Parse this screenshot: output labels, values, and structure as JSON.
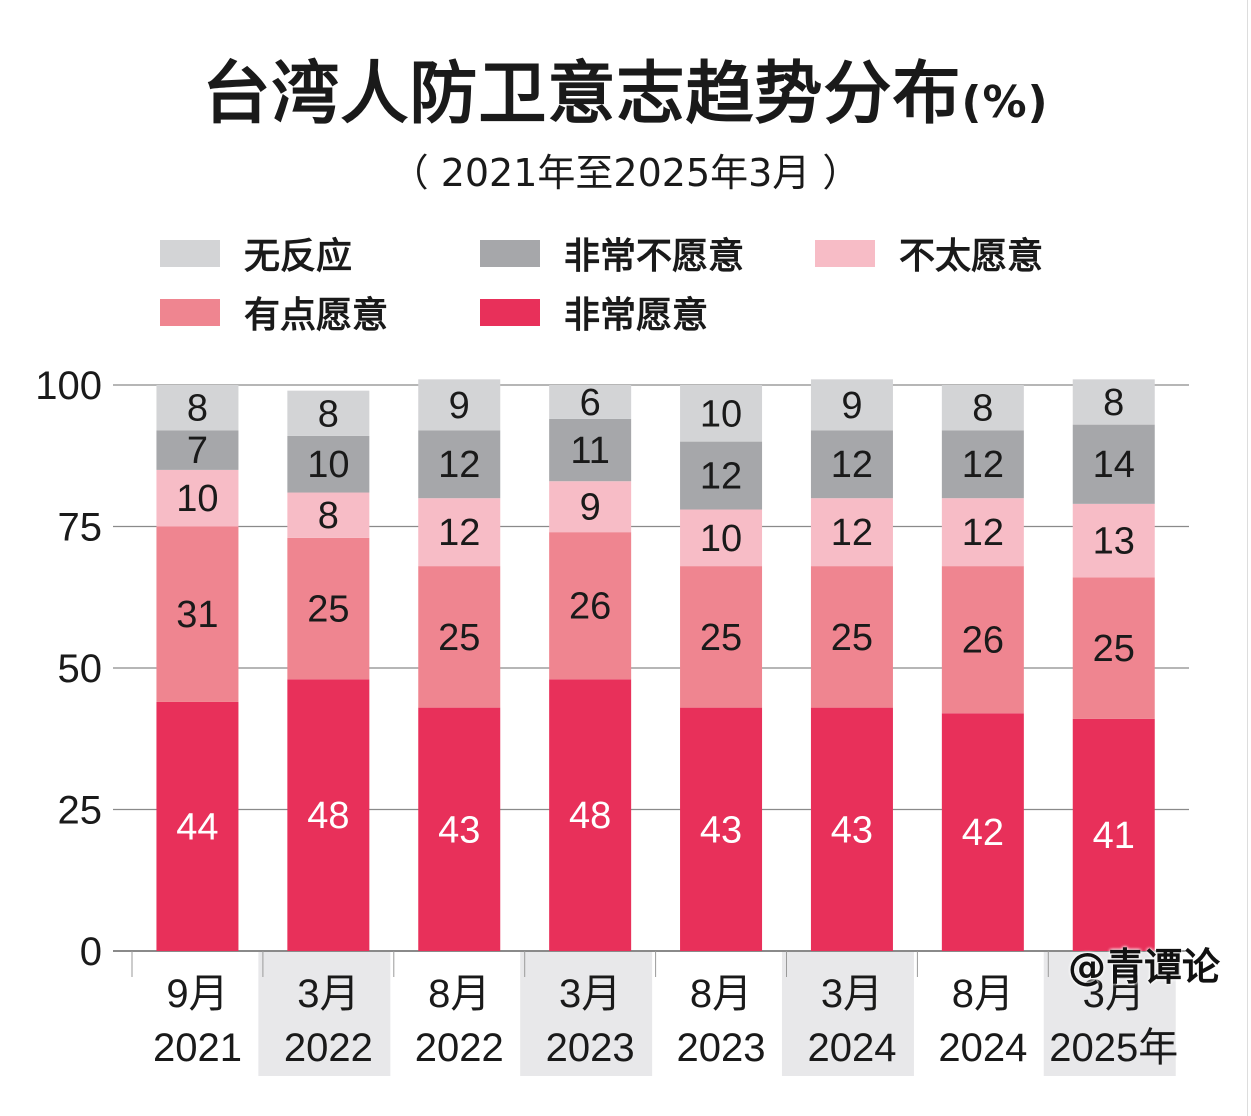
{
  "title": "台湾人防卫意志趋势分布",
  "title_unit": "(%)",
  "subtitle": "（ 2021年至2025年3月 ）",
  "watermark": "@青谭论",
  "legend": [
    {
      "label": "无反应",
      "color": "#d3d4d6"
    },
    {
      "label": "非常不愿意",
      "color": "#a6a7aa"
    },
    {
      "label": "不太愿意",
      "color": "#f7bcc6"
    },
    {
      "label": "有点愿意",
      "color": "#ef8590"
    },
    {
      "label": "非常愿意",
      "color": "#e8305a"
    }
  ],
  "chart_data": {
    "type": "bar",
    "stacked": true,
    "categories": [
      {
        "month": "9月",
        "year": "2021"
      },
      {
        "month": "3月",
        "year": "2022"
      },
      {
        "month": "8月",
        "year": "2022"
      },
      {
        "month": "3月",
        "year": "2023"
      },
      {
        "month": "8月",
        "year": "2023"
      },
      {
        "month": "3月",
        "year": "2024"
      },
      {
        "month": "8月",
        "year": "2024"
      },
      {
        "month": "3月",
        "year": "2025年"
      }
    ],
    "series": [
      {
        "name": "非常愿意",
        "color": "#e8305a",
        "label_color": "#ffffff",
        "values": [
          44,
          48,
          43,
          48,
          43,
          43,
          42,
          41
        ]
      },
      {
        "name": "有点愿意",
        "color": "#ef8590",
        "label_color": "#1a1a1a",
        "values": [
          31,
          25,
          25,
          26,
          25,
          25,
          26,
          25
        ]
      },
      {
        "name": "不太愿意",
        "color": "#f7bcc6",
        "label_color": "#1a1a1a",
        "values": [
          10,
          8,
          12,
          9,
          10,
          12,
          12,
          13
        ]
      },
      {
        "name": "非常不愿意",
        "color": "#a6a7aa",
        "label_color": "#1a1a1a",
        "values": [
          7,
          10,
          12,
          11,
          12,
          12,
          12,
          14
        ]
      },
      {
        "name": "无反应",
        "color": "#d3d4d6",
        "label_color": "#1a1a1a",
        "values": [
          8,
          8,
          9,
          6,
          10,
          9,
          8,
          8
        ]
      }
    ],
    "y_ticks": [
      0,
      25,
      50,
      75,
      100
    ],
    "ylim": [
      0,
      100
    ],
    "grid": true,
    "legend_position": "top"
  }
}
